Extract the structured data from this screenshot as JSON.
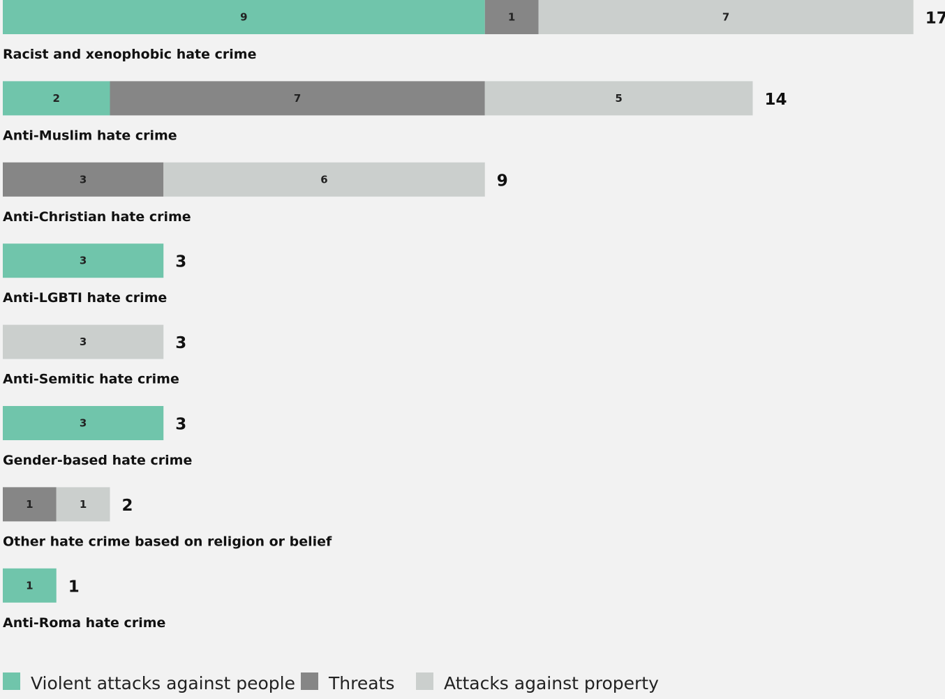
{
  "chart_data": {
    "type": "bar",
    "orientation": "horizontal",
    "stacked": true,
    "categories": [
      "Racist and xenophobic hate crime",
      "Anti-Muslim hate crime",
      "Anti-Christian hate crime",
      "Anti-LGBTI hate crime",
      "Anti-Semitic hate crime",
      "Gender-based hate crime",
      "Other hate crime based on religion or belief",
      "Anti-Roma hate crime"
    ],
    "series": [
      {
        "name": "Violent attacks against people",
        "color": "#70c5ab",
        "values": [
          9,
          2,
          0,
          3,
          0,
          3,
          0,
          1
        ]
      },
      {
        "name": "Threats",
        "color": "#868686",
        "values": [
          1,
          7,
          3,
          0,
          0,
          0,
          1,
          0
        ]
      },
      {
        "name": "Attacks against property",
        "color": "#cbcfcd",
        "values": [
          7,
          5,
          6,
          0,
          3,
          0,
          1,
          0
        ]
      }
    ],
    "totals": [
      17,
      14,
      9,
      3,
      3,
      3,
      2,
      1
    ],
    "xlim": [
      0,
      17
    ],
    "grid": false,
    "legend_position": "bottom-left"
  }
}
